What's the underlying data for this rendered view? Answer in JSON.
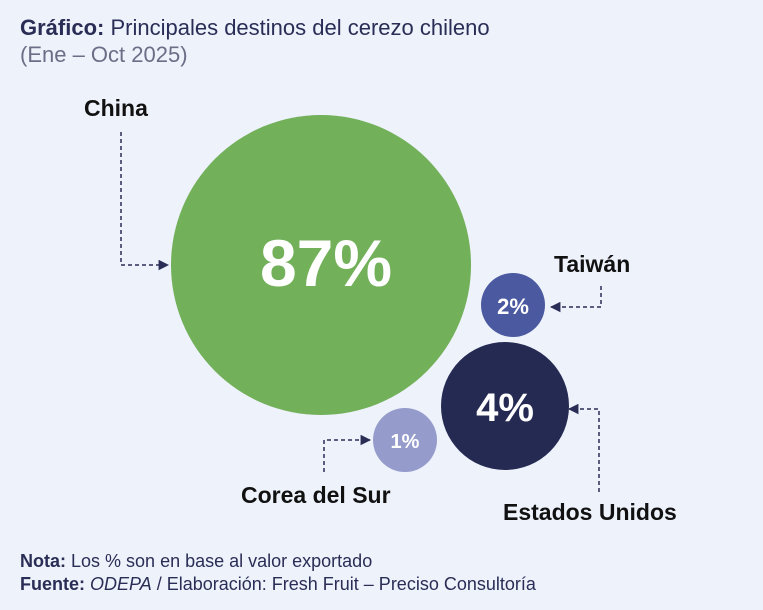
{
  "header": {
    "title_label": "Gráfico:",
    "title_text": "Principales destinos del cerezo chileno",
    "subtitle": "(Ene – Oct 2025)"
  },
  "chart_data": {
    "type": "bubble",
    "unit": "%",
    "series": [
      {
        "name": "China",
        "value": 87,
        "label": "87%",
        "color": "#72b05a"
      },
      {
        "name": "Estados Unidos",
        "value": 4,
        "label": "4%",
        "color": "#252a52"
      },
      {
        "name": "Taiwán",
        "value": 2,
        "label": "2%",
        "color": "#4b5aa0"
      },
      {
        "name": "Corea del Sur",
        "value": 1,
        "label": "1%",
        "color": "#959ccc"
      }
    ]
  },
  "footer": {
    "note_label": "Nota:",
    "note_text": "Los % son en base al valor exportado",
    "source_label": "Fuente:",
    "source_name": "ODEPA",
    "source_sep": " / ",
    "source_elab": "Elaboración: Fresh Fruit – Preciso Consultoría"
  }
}
